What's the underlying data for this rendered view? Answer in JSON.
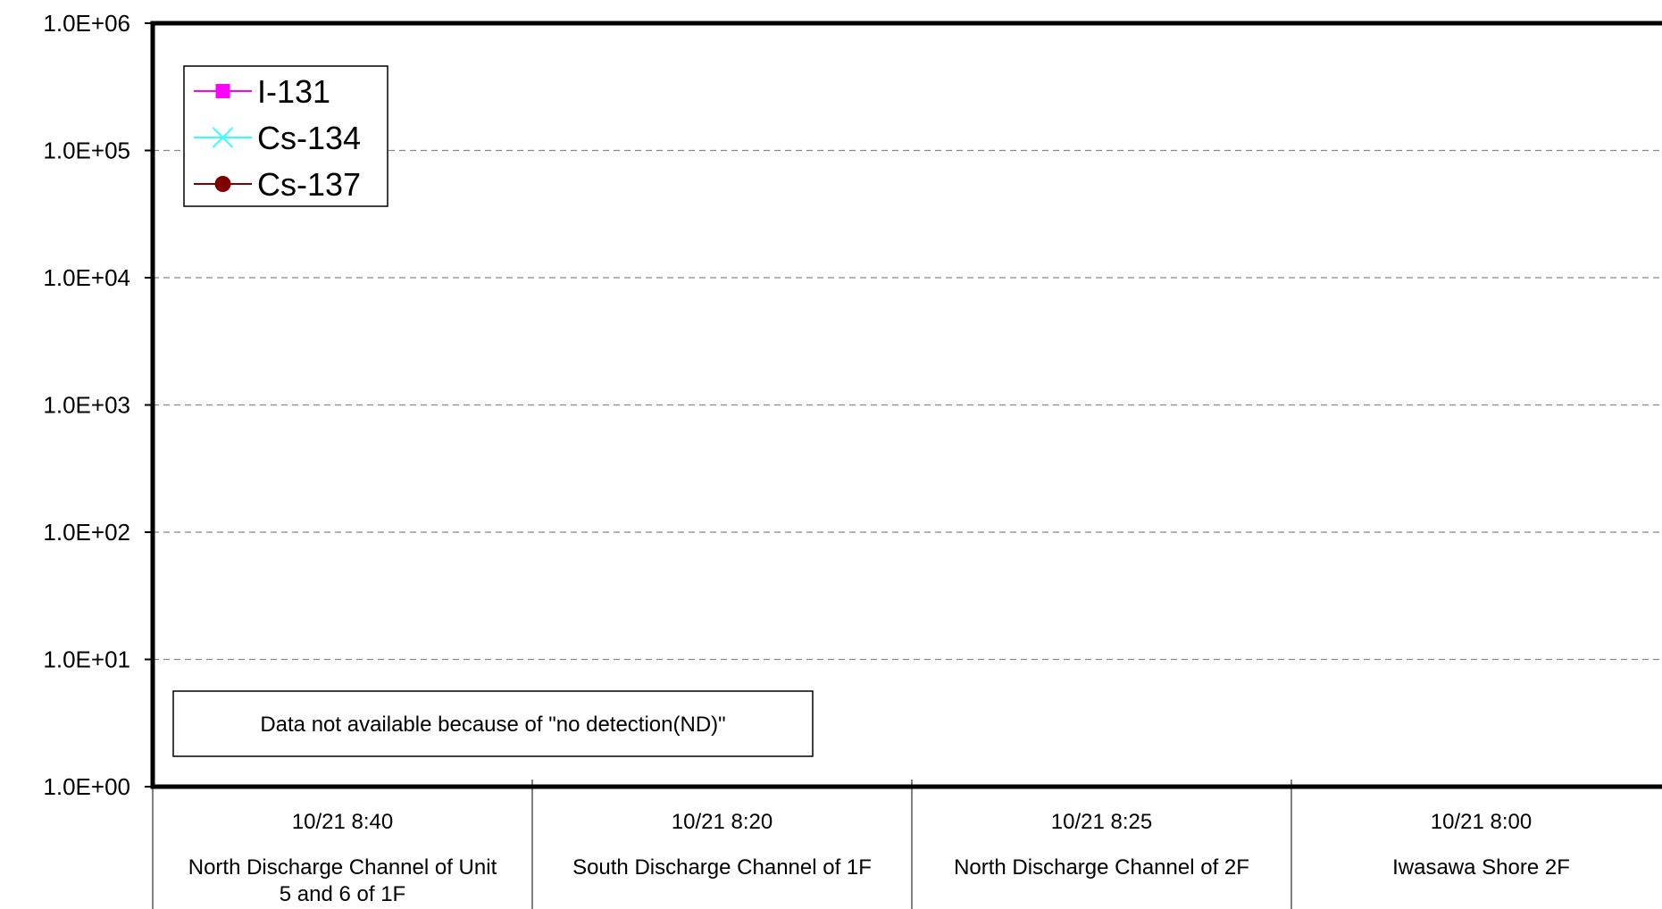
{
  "chart_data": {
    "type": "line",
    "y_scale": "log",
    "ylim": [
      1,
      1000000
    ],
    "y_ticks": [
      "1.0E+00",
      "1.0E+01",
      "1.0E+02",
      "1.0E+03",
      "1.0E+04",
      "1.0E+05",
      "1.0E+06"
    ],
    "grid": "horizontal dashed",
    "legend_position": "top-left",
    "categories": [
      {
        "time": "10/21 8:40",
        "location": "North Discharge Channel of Unit 5 and 6 of 1F"
      },
      {
        "time": "10/21 8:20",
        "location": "South Discharge Channel of 1F"
      },
      {
        "time": "10/21 8:25",
        "location": "North Discharge Channel of 2F"
      },
      {
        "time": "10/21 8:00",
        "location": "Iwasawa Shore 2F"
      }
    ],
    "series": [
      {
        "name": "I-131",
        "color": "#ff00ff",
        "marker": "square",
        "values": [
          null,
          null,
          null,
          null
        ]
      },
      {
        "name": "Cs-134",
        "color": "#33ffff",
        "marker": "x",
        "values": [
          null,
          null,
          null,
          null
        ]
      },
      {
        "name": "Cs-137",
        "color": "#800000",
        "marker": "circle",
        "values": [
          null,
          null,
          null,
          null
        ]
      }
    ],
    "annotation": "Data not available because of \"no detection(ND)\""
  }
}
